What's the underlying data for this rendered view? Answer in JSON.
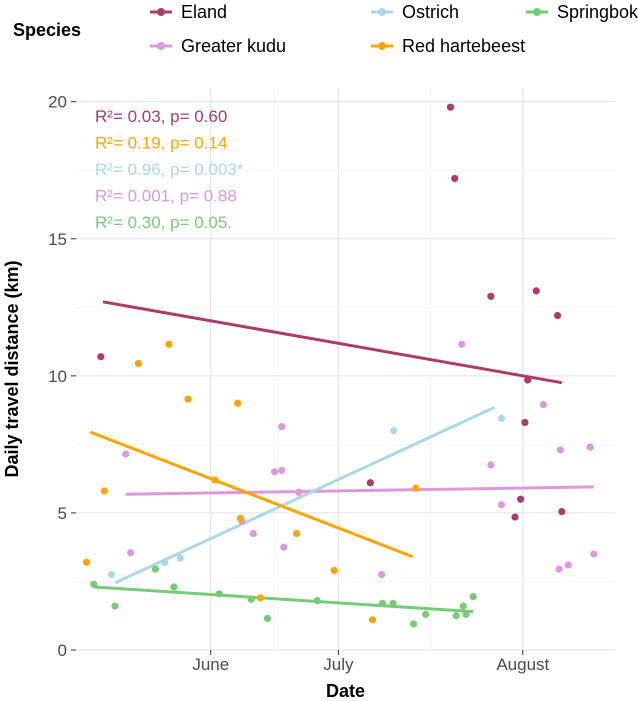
{
  "chart_data": {
    "type": "scatter",
    "title": "",
    "xlabel": "Date",
    "ylabel": "Daily travel distance (km)",
    "ylim": [
      0,
      20.5
    ],
    "xlim": [
      -7,
      69
    ],
    "x_units": "days since 2019-05-25 (approx.)",
    "x_ticks": [
      {
        "value": 12,
        "label": "June"
      },
      {
        "value": 30,
        "label": "July"
      },
      {
        "value": 56,
        "label": "August"
      }
    ],
    "y_ticks": [
      0,
      5,
      10,
      15,
      20
    ],
    "y_tick_labels": [
      "0",
      "5",
      "10",
      "15",
      "20"
    ],
    "legend_title": "Species",
    "legend_position": "top",
    "series": [
      {
        "name": "Eland",
        "color": "#B03A68",
        "points": [
          [
            -3.5,
            10.7
          ],
          [
            34.5,
            6.1
          ],
          [
            45.8,
            19.8
          ],
          [
            46.4,
            17.2
          ],
          [
            51.5,
            12.9
          ],
          [
            54.9,
            4.85
          ],
          [
            55.7,
            5.5
          ],
          [
            56.3,
            8.3
          ],
          [
            56.7,
            9.85
          ],
          [
            57.9,
            13.1
          ],
          [
            60.9,
            12.2
          ],
          [
            61.5,
            5.05
          ]
        ],
        "fit": [
          [
            -3.2,
            12.7
          ],
          [
            61.5,
            9.75
          ]
        ]
      },
      {
        "name": "Greater kudu",
        "color": "#DD99DD",
        "points": [
          [
            0,
            7.15
          ],
          [
            0.7,
            3.55
          ],
          [
            16.4,
            4.7
          ],
          [
            18,
            4.25
          ],
          [
            21,
            6.5
          ],
          [
            22,
            8.15
          ],
          [
            22,
            6.55
          ],
          [
            22.3,
            3.75
          ],
          [
            24.4,
            5.75
          ],
          [
            36.1,
            2.75
          ],
          [
            47.4,
            11.15
          ],
          [
            51.5,
            6.75
          ],
          [
            53,
            5.3
          ],
          [
            58.9,
            8.95
          ],
          [
            61.1,
            2.95
          ],
          [
            61.3,
            7.3
          ],
          [
            62.4,
            3.1
          ],
          [
            65.5,
            7.4
          ],
          [
            66,
            3.5
          ]
        ],
        "fit": [
          [
            0,
            5.68
          ],
          [
            66,
            5.95
          ]
        ]
      },
      {
        "name": "Ostrich",
        "color": "#ADD8E6",
        "points": [
          [
            -2,
            2.75
          ],
          [
            5.5,
            3.2
          ],
          [
            7.7,
            3.35
          ],
          [
            37.8,
            8
          ],
          [
            53,
            8.45
          ]
        ],
        "fit": [
          [
            -1.5,
            2.45
          ],
          [
            52,
            8.85
          ]
        ]
      },
      {
        "name": "Red hartebeest",
        "color": "#FFA500",
        "points": [
          [
            -5.5,
            3.2
          ],
          [
            -3,
            5.8
          ],
          [
            1.8,
            10.45
          ],
          [
            6.1,
            11.15
          ],
          [
            8.8,
            9.15
          ],
          [
            12.6,
            6.2
          ],
          [
            15.8,
            9
          ],
          [
            16.2,
            4.8
          ],
          [
            19,
            1.9
          ],
          [
            24.1,
            4.25
          ],
          [
            29.4,
            2.9
          ],
          [
            34.8,
            1.1
          ],
          [
            40.9,
            5.9
          ]
        ],
        "fit": [
          [
            -5,
            7.95
          ],
          [
            40.5,
            3.4
          ]
        ]
      },
      {
        "name": "Springbok",
        "color": "#77CC77",
        "points": [
          [
            -4.5,
            2.4
          ],
          [
            -1.5,
            1.6
          ],
          [
            4.2,
            2.95
          ],
          [
            6.8,
            2.3
          ],
          [
            13.2,
            2.05
          ],
          [
            17.7,
            1.85
          ],
          [
            20,
            1.15
          ],
          [
            27,
            1.8
          ],
          [
            36.2,
            1.7
          ],
          [
            37.7,
            1.7
          ],
          [
            40.6,
            0.95
          ],
          [
            42.3,
            1.3
          ],
          [
            46.6,
            1.25
          ],
          [
            47.6,
            1.6
          ],
          [
            48,
            1.3
          ],
          [
            49,
            1.95
          ]
        ],
        "fit": [
          [
            -4.5,
            2.3
          ],
          [
            49,
            1.4
          ]
        ]
      }
    ],
    "annotations": [
      {
        "text": "R²= 0.03, p= 0.60",
        "series": "Eland"
      },
      {
        "text": "R²= 0.19, p= 0.14",
        "series": "Red hartebeest"
      },
      {
        "text": "R²= 0.96, p= 0.003*",
        "series": "Ostrich"
      },
      {
        "text": "R²= 0.001, p= 0.88",
        "series": "Greater kudu"
      },
      {
        "text": "R²= 0.30, p= 0.05.",
        "series": "Springbok"
      }
    ]
  }
}
